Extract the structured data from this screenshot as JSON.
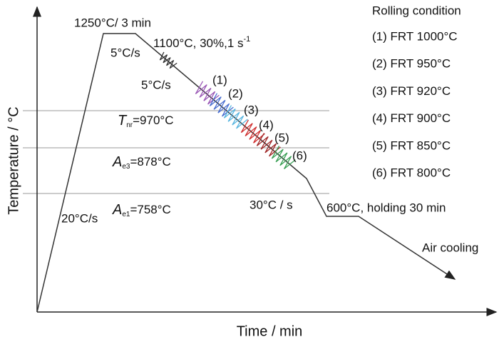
{
  "diagram": {
    "y_axis_label": "Temperature / °C",
    "x_axis_label": "Time / min",
    "reheat": "1250°C/ 3 min",
    "heating_rate": "20°C/s",
    "cooling_rate_1": "5°C/s",
    "cooling_rate_2": "5°C/s",
    "deformation": {
      "text": "1100°C, 30%,1 s",
      "sup": "-1"
    },
    "tnr": {
      "symbol": "T",
      "subscript": "nr",
      "text": "=970°C"
    },
    "ae3": {
      "symbol": "A",
      "subscript": "e3",
      "text": "=878°C"
    },
    "ae1": {
      "symbol": "A",
      "subscript": "e1",
      "text": "=758°C"
    },
    "fast_cooling": "30°C / s",
    "holding": "600°C,  holding 30 min",
    "air_cooling": "Air cooling",
    "pass_markers": [
      "(1)",
      "(2)",
      "(3)",
      "(4)",
      "(5)",
      "(6)"
    ],
    "legend": {
      "title": "Rolling condition",
      "items": [
        "(1) FRT 1000°C",
        "(2) FRT 950°C",
        "(3) FRT 920°C",
        "(4) FRT 900°C",
        "(5) FRT 850°C",
        "(6) FRT 800°C"
      ]
    }
  }
}
